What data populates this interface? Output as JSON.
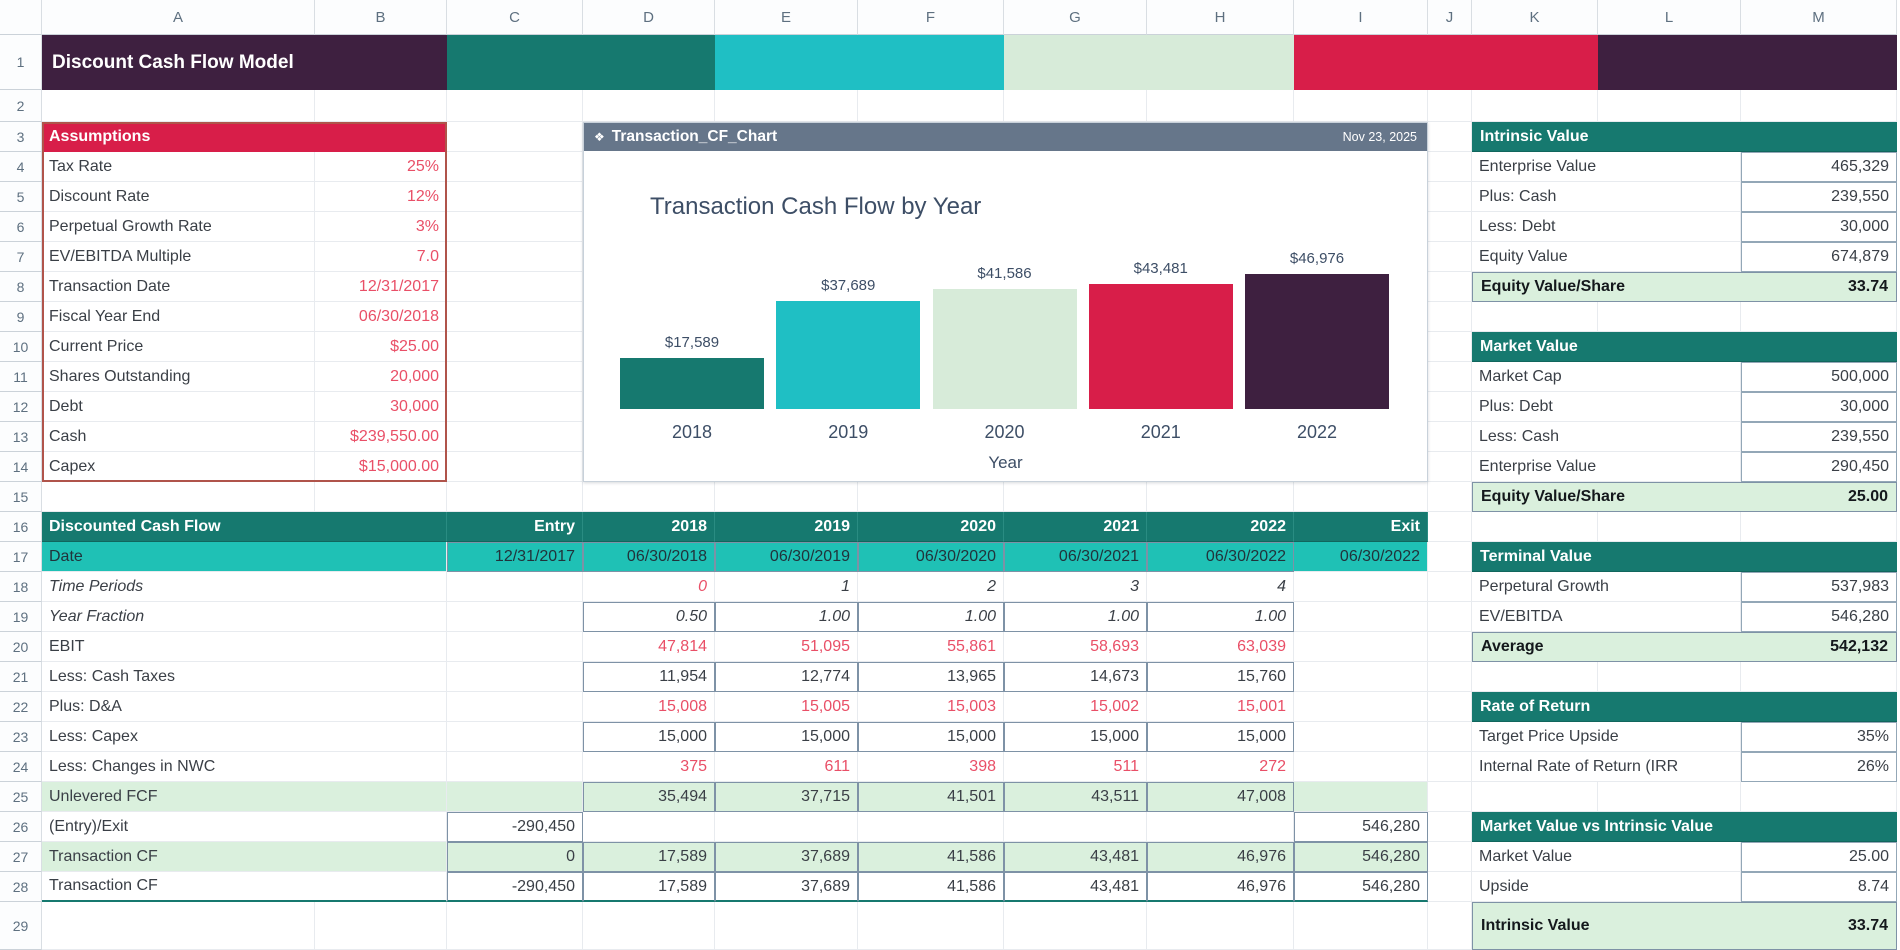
{
  "colors": {
    "purple": "#3E2040",
    "teal_dark": "#16796F",
    "teal_bright": "#1FBFC4",
    "teal_date_row": "#1FC1B5",
    "mint": "#D7EBD9",
    "crimson": "#D81E49",
    "green_highlight": "#DAF0DD",
    "red_text": "#E94F67",
    "chart_titlebar_slate": "#66768A",
    "chart_text_navy": "#3D4E66",
    "title_bands": [
      "#3E2040",
      "#16796F",
      "#1FBFC4",
      "#D7EBD9",
      "#D81E49",
      "#3E2040"
    ]
  },
  "sheet": {
    "columns": [
      "A",
      "B",
      "C",
      "D",
      "E",
      "F",
      "G",
      "H",
      "I",
      "J",
      "K",
      "L",
      "M"
    ],
    "rows": 29
  },
  "title_bar": {
    "label": "Discount Cash Flow Model"
  },
  "assumptions": {
    "title": "Assumptions",
    "rows": [
      {
        "label": "Tax Rate",
        "value": "25%"
      },
      {
        "label": "Discount Rate",
        "value": "12%"
      },
      {
        "label": "Perpetual Growth Rate",
        "value": "3%"
      },
      {
        "label": "EV/EBITDA Multiple",
        "value": "7.0"
      },
      {
        "label": "Transaction Date",
        "value": "12/31/2017"
      },
      {
        "label": "Fiscal Year End",
        "value": "06/30/2018"
      },
      {
        "label": "Current Price",
        "value": "$25.00"
      },
      {
        "label": "Shares Outstanding",
        "value": "20,000"
      },
      {
        "label": "Debt",
        "value": "30,000"
      },
      {
        "label": "Cash",
        "value": "$239,550.00"
      },
      {
        "label": "Capex",
        "value": "$15,000.00"
      }
    ]
  },
  "chart_window": {
    "title": "Transaction_CF_Chart",
    "date": "Nov 23, 2025",
    "icon": "❖"
  },
  "chart_data": {
    "type": "bar",
    "title": "Transaction Cash Flow by Year",
    "categories": [
      "2018",
      "2019",
      "2020",
      "2021",
      "2022"
    ],
    "values": [
      17589,
      37689,
      41586,
      43481,
      46976
    ],
    "value_labels": [
      "$17,589",
      "$37,689",
      "$41,586",
      "$43,481",
      "$46,976"
    ],
    "bar_colors": [
      "#16796F",
      "#1FBFC4",
      "#D7EBD9",
      "#D81E49",
      "#3E2040"
    ],
    "xlabel": "Year",
    "ylabel": "",
    "ylim": [
      0,
      50000
    ],
    "grid": false,
    "legend": "none"
  },
  "dcf": {
    "title": "Discounted Cash Flow",
    "columns": [
      "Entry",
      "2018",
      "2019",
      "2020",
      "2021",
      "2022",
      "Exit"
    ],
    "rows": [
      {
        "label": "Date",
        "values": [
          "12/31/2017",
          "06/30/2018",
          "06/30/2019",
          "06/30/2020",
          "06/30/2021",
          "06/30/2022",
          "06/30/2022"
        ]
      },
      {
        "label": "Time Periods",
        "values": [
          "",
          "0",
          "1",
          "2",
          "3",
          "4",
          ""
        ]
      },
      {
        "label": "Year Fraction",
        "values": [
          "",
          "0.50",
          "1.00",
          "1.00",
          "1.00",
          "1.00",
          ""
        ]
      },
      {
        "label": "EBIT",
        "values": [
          "",
          "47,814",
          "51,095",
          "55,861",
          "58,693",
          "63,039",
          ""
        ]
      },
      {
        "label": "Less: Cash Taxes",
        "values": [
          "",
          "11,954",
          "12,774",
          "13,965",
          "14,673",
          "15,760",
          ""
        ]
      },
      {
        "label": "Plus: D&A",
        "values": [
          "",
          "15,008",
          "15,005",
          "15,003",
          "15,002",
          "15,001",
          ""
        ]
      },
      {
        "label": "Less: Capex",
        "values": [
          "",
          "15,000",
          "15,000",
          "15,000",
          "15,000",
          "15,000",
          ""
        ]
      },
      {
        "label": "Less: Changes in NWC",
        "values": [
          "",
          "375",
          "611",
          "398",
          "511",
          "272",
          ""
        ]
      },
      {
        "label": "Unlevered FCF",
        "values": [
          "",
          "35,494",
          "37,715",
          "41,501",
          "43,511",
          "47,008",
          ""
        ]
      },
      {
        "label": "(Entry)/Exit",
        "values": [
          "-290,450",
          "",
          "",
          "",
          "",
          "",
          "546,280"
        ]
      },
      {
        "label": "Transaction CF",
        "values": [
          "0",
          "17,589",
          "37,689",
          "41,586",
          "43,481",
          "46,976",
          "546,280"
        ]
      },
      {
        "label": "Transaction CF",
        "values": [
          "-290,450",
          "17,589",
          "37,689",
          "41,586",
          "43,481",
          "46,976",
          "546,280"
        ]
      }
    ]
  },
  "panels": [
    {
      "title": "Intrinsic Value",
      "rows": [
        {
          "label": "Enterprise Value",
          "value": "465,329"
        },
        {
          "label": "Plus: Cash",
          "value": "239,550"
        },
        {
          "label": "Less: Debt",
          "value": "30,000"
        },
        {
          "label": "Equity Value",
          "value": "674,879"
        },
        {
          "label": "Equity Value/Share",
          "value": "33.74",
          "bold": true
        }
      ]
    },
    {
      "title": "Market Value",
      "rows": [
        {
          "label": "Market Cap",
          "value": "500,000"
        },
        {
          "label": "Plus: Debt",
          "value": "30,000"
        },
        {
          "label": "Less: Cash",
          "value": "239,550"
        },
        {
          "label": "Enterprise Value",
          "value": "290,450"
        },
        {
          "label": "Equity Value/Share",
          "value": "25.00",
          "bold": true
        }
      ]
    },
    {
      "title": "Terminal Value",
      "rows": [
        {
          "label": "Perpetural Growth",
          "value": "537,983"
        },
        {
          "label": "EV/EBITDA",
          "value": "546,280"
        },
        {
          "label": "Average",
          "value": "542,132",
          "bold": true
        }
      ]
    },
    {
      "title": "Rate of Return",
      "rows": [
        {
          "label": "Target Price Upside",
          "value": "35%"
        },
        {
          "label": "Internal Rate of Return (IRR",
          "value": "26%"
        }
      ]
    },
    {
      "title": "Market Value vs Intrinsic Value",
      "rows": [
        {
          "label": "Market Value",
          "value": "25.00"
        },
        {
          "label": "Upside",
          "value": "8.74"
        },
        {
          "label": "Intrinsic Value",
          "value": "33.74",
          "bold": true
        }
      ]
    }
  ]
}
